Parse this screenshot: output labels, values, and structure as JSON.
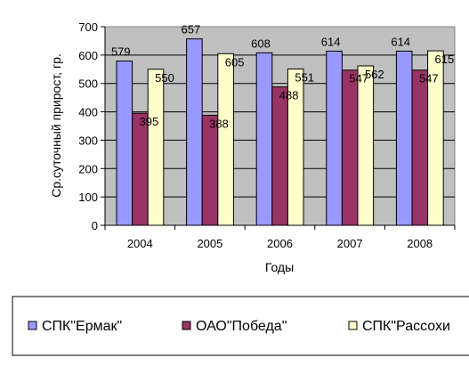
{
  "chart_data": {
    "type": "bar",
    "categories": [
      "2004",
      "2005",
      "2006",
      "2007",
      "2008"
    ],
    "series": [
      {
        "name": "СПК\"Ермак\"",
        "values": [
          579,
          657,
          608,
          614,
          614
        ],
        "color": "#9999FF"
      },
      {
        "name": "ОАО\"Победа\"",
        "values": [
          395,
          388,
          488,
          547,
          547
        ],
        "color": "#993366"
      },
      {
        "name": "СПК\"Рассохи",
        "values": [
          550,
          605,
          551,
          562,
          615
        ],
        "color": "#FFFFCC"
      }
    ],
    "xlabel": "Годы",
    "ylabel": "Ср.суточный прирост, гр.",
    "ylim": [
      0,
      700
    ],
    "yticks": [
      0,
      100,
      200,
      300,
      400,
      500,
      600,
      700
    ],
    "grid": true,
    "plot_background": "#C0C0C0",
    "legend": "bottom"
  }
}
